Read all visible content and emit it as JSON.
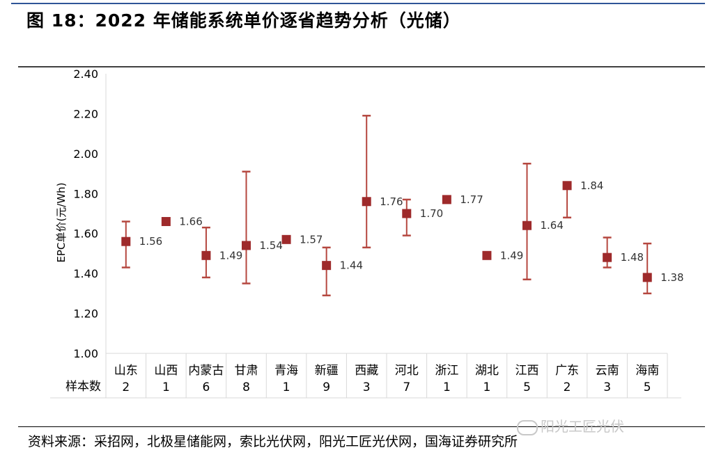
{
  "figure": {
    "title": "图 18：2022 年储能系统单价逐省趋势分析（光储）",
    "source": "资料来源：采招网，北极星储能网，索比光伏网，阳光工匠光伏网，国海证券研究所",
    "watermark": "阳光工匠光伏"
  },
  "chart_data": {
    "type": "errorbar",
    "ylabel": "EPC单价(元/Wh)",
    "ylim": [
      1.0,
      2.4
    ],
    "yticks": [
      "1.00",
      "1.20",
      "1.40",
      "1.60",
      "1.80",
      "2.00",
      "2.20",
      "2.40"
    ],
    "sample_label": "样本数",
    "categories": [
      "山东",
      "山西",
      "内蒙古",
      "甘肃",
      "青海",
      "新疆",
      "西藏",
      "河北",
      "浙江",
      "湖北",
      "江西",
      "广东",
      "云南",
      "海南"
    ],
    "samples": [
      "2",
      "1",
      "6",
      "8",
      "1",
      "9",
      "3",
      "7",
      "1",
      "1",
      "5",
      "2",
      "3",
      "5"
    ],
    "values": [
      1.56,
      1.66,
      1.49,
      1.54,
      1.57,
      1.44,
      1.76,
      1.7,
      1.77,
      1.49,
      1.64,
      1.84,
      1.48,
      1.38
    ],
    "value_labels": [
      "1.56",
      "1.66",
      "1.49",
      "1.54",
      "1.57",
      "1.44",
      "1.76",
      "1.70",
      "1.77",
      "1.49",
      "1.64",
      "1.84",
      "1.48",
      "1.38"
    ],
    "max": [
      1.66,
      null,
      1.63,
      1.91,
      null,
      1.53,
      2.19,
      1.77,
      null,
      null,
      1.95,
      1.85,
      1.58,
      1.55
    ],
    "min": [
      1.43,
      null,
      1.38,
      1.35,
      null,
      1.29,
      1.53,
      1.59,
      null,
      null,
      1.37,
      1.68,
      1.43,
      1.3
    ],
    "colors": {
      "marker": "#9e2a2b",
      "errorbar": "#b5473f",
      "axis": "#d9d9d9"
    },
    "grid": false,
    "legend": "none"
  }
}
